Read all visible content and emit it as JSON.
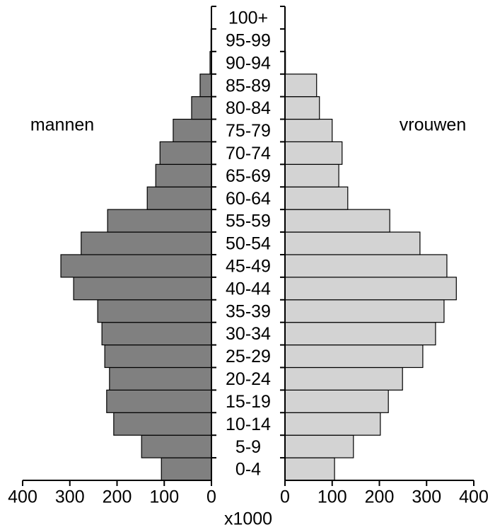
{
  "chart_data": {
    "type": "pyramid",
    "categories": [
      "0-4",
      "5-9",
      "10-14",
      "15-19",
      "20-24",
      "25-29",
      "30-34",
      "35-39",
      "40-44",
      "45-49",
      "50-54",
      "55-59",
      "60-64",
      "65-69",
      "70-74",
      "75-79",
      "80-84",
      "85-89",
      "90-94",
      "95-99",
      "100+"
    ],
    "series": [
      {
        "name": "mannen",
        "color": "#808080",
        "values": [
          106,
          148,
          207,
          222,
          216,
          226,
          232,
          241,
          292,
          319,
          276,
          220,
          136,
          118,
          109,
          81,
          42,
          24,
          3,
          1,
          0
        ]
      },
      {
        "name": "vrouwen",
        "color": "#d3d3d3",
        "values": [
          105,
          145,
          202,
          219,
          249,
          292,
          319,
          337,
          363,
          343,
          286,
          222,
          133,
          114,
          121,
          100,
          73,
          67,
          1,
          0,
          0
        ]
      }
    ],
    "xlim": [
      0,
      400
    ],
    "xticks": [
      0,
      100,
      200,
      300,
      400
    ],
    "xlabel": "x1000"
  }
}
